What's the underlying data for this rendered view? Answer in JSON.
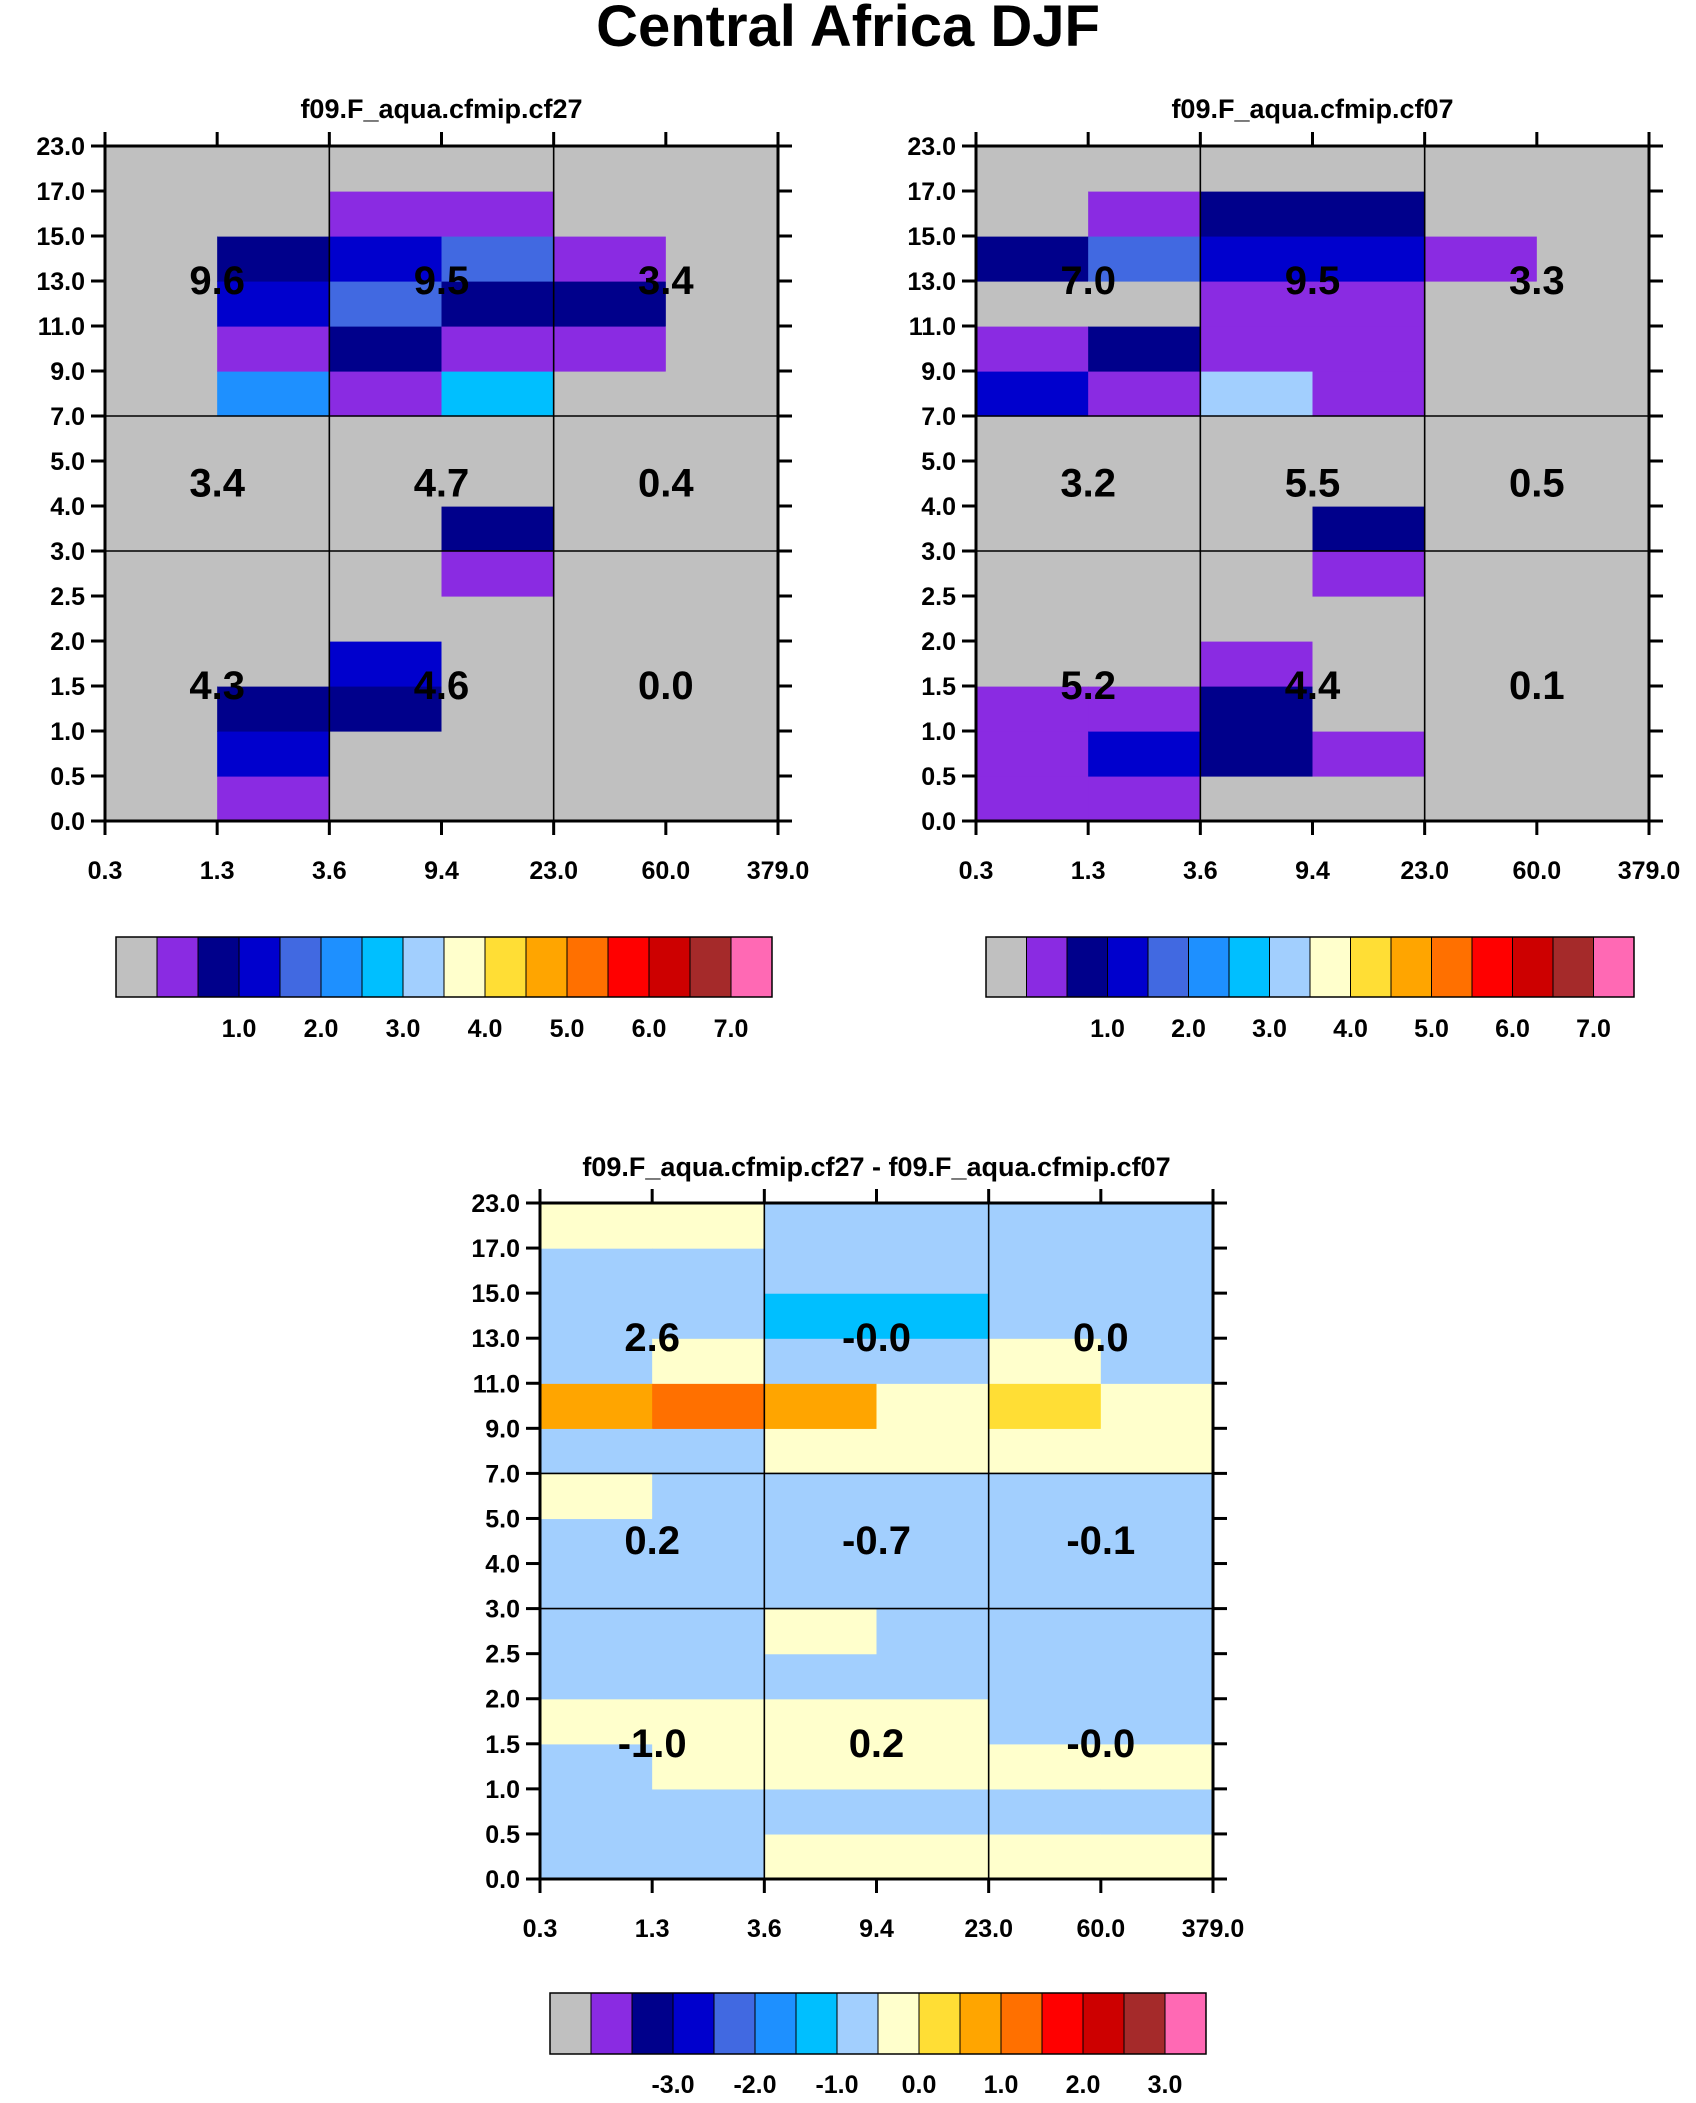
{
  "page_title": "Central Africa DJF",
  "chart_data": [
    {
      "type": "heatmap",
      "title": "f09.F_aqua.cfmip.cf27",
      "x_ticks": [
        "0.3",
        "1.3",
        "3.6",
        "9.4",
        "23.0",
        "60.0",
        "379.0"
      ],
      "y_ticks": [
        "0.0",
        "0.5",
        "1.0",
        "1.5",
        "2.0",
        "2.5",
        "3.0",
        "4.0",
        "5.0",
        "7.0",
        "9.0",
        "11.0",
        "13.0",
        "15.0",
        "17.0",
        "23.0"
      ],
      "cells": [
        [
          0,
          0,
          0,
          0,
          0,
          0,
          0,
          0,
          0,
          0,
          0,
          0,
          0,
          0,
          0
        ],
        [
          1,
          3,
          2,
          0,
          0,
          0,
          0,
          0,
          0,
          5,
          1,
          3,
          2,
          0,
          0
        ],
        [
          0,
          0,
          2,
          3,
          0,
          0,
          0,
          0,
          0,
          1,
          2,
          4,
          3,
          1,
          0
        ],
        [
          0,
          0,
          0,
          0,
          0,
          1,
          2,
          0,
          0,
          6,
          1,
          2,
          4,
          1,
          0
        ],
        [
          0,
          0,
          0,
          0,
          0,
          0,
          0,
          0,
          0,
          0,
          1,
          2,
          1,
          0,
          0
        ],
        [
          0,
          0,
          0,
          0,
          0,
          0,
          0,
          0,
          0,
          0,
          0,
          0,
          0,
          0,
          0
        ]
      ],
      "box_labels": [
        [
          "4.3",
          "4.6",
          "0.0"
        ],
        [
          "3.4",
          "4.7",
          "0.4"
        ],
        [
          "9.6",
          "9.5",
          "3.4"
        ]
      ],
      "colorbar_labels": [
        "1.0",
        "2.0",
        "3.0",
        "4.0",
        "5.0",
        "6.0",
        "7.0"
      ]
    },
    {
      "type": "heatmap",
      "title": "f09.F_aqua.cfmip.cf07",
      "x_ticks": [
        "0.3",
        "1.3",
        "3.6",
        "9.4",
        "23.0",
        "60.0",
        "379.0"
      ],
      "y_ticks": [
        "0.0",
        "0.5",
        "1.0",
        "1.5",
        "2.0",
        "2.5",
        "3.0",
        "4.0",
        "5.0",
        "7.0",
        "9.0",
        "11.0",
        "13.0",
        "15.0",
        "17.0",
        "23.0"
      ],
      "cells": [
        [
          1,
          1,
          1,
          0,
          0,
          0,
          0,
          0,
          0,
          3,
          1,
          0,
          2,
          0,
          0
        ],
        [
          1,
          3,
          1,
          0,
          0,
          0,
          0,
          0,
          0,
          1,
          2,
          0,
          4,
          1,
          0
        ],
        [
          0,
          2,
          2,
          1,
          0,
          0,
          0,
          0,
          0,
          7,
          1,
          1,
          3,
          2,
          0
        ],
        [
          0,
          1,
          0,
          0,
          0,
          1,
          2,
          0,
          0,
          1,
          1,
          1,
          3,
          2,
          0
        ],
        [
          0,
          0,
          0,
          0,
          0,
          0,
          0,
          0,
          0,
          0,
          0,
          0,
          1,
          0,
          0
        ],
        [
          0,
          0,
          0,
          0,
          0,
          0,
          0,
          0,
          0,
          0,
          0,
          0,
          0,
          0,
          0
        ]
      ],
      "box_labels": [
        [
          "5.2",
          "4.4",
          "0.1"
        ],
        [
          "3.2",
          "5.5",
          "0.5"
        ],
        [
          "7.0",
          "9.5",
          "3.3"
        ]
      ],
      "colorbar_labels": [
        "1.0",
        "2.0",
        "3.0",
        "4.0",
        "5.0",
        "6.0",
        "7.0"
      ]
    },
    {
      "type": "heatmap",
      "title": "f09.F_aqua.cfmip.cf27 - f09.F_aqua.cfmip.cf07",
      "x_ticks": [
        "0.3",
        "1.3",
        "3.6",
        "9.4",
        "23.0",
        "60.0",
        "379.0"
      ],
      "y_ticks": [
        "0.0",
        "0.5",
        "1.0",
        "1.5",
        "2.0",
        "2.5",
        "3.0",
        "4.0",
        "5.0",
        "7.0",
        "9.0",
        "11.0",
        "13.0",
        "15.0",
        "17.0",
        "23.0"
      ],
      "cells": [
        [
          7,
          7,
          7,
          8,
          7,
          7,
          7,
          7,
          8,
          7,
          10,
          7,
          7,
          7,
          8
        ],
        [
          7,
          7,
          8,
          8,
          7,
          7,
          7,
          7,
          7,
          7,
          11,
          8,
          7,
          7,
          8
        ],
        [
          8,
          7,
          8,
          8,
          7,
          8,
          7,
          7,
          7,
          8,
          10,
          7,
          6,
          7,
          7
        ],
        [
          8,
          7,
          8,
          8,
          7,
          7,
          7,
          7,
          7,
          8,
          8,
          7,
          6,
          7,
          7
        ],
        [
          8,
          7,
          8,
          7,
          7,
          7,
          7,
          7,
          7,
          8,
          9,
          8,
          7,
          7,
          7
        ],
        [
          8,
          7,
          8,
          7,
          7,
          7,
          7,
          7,
          7,
          8,
          8,
          7,
          7,
          7,
          7
        ]
      ],
      "box_labels": [
        [
          "-1.0",
          "0.2",
          "-0.0"
        ],
        [
          "0.2",
          "-0.7",
          "-0.1"
        ],
        [
          "2.6",
          "-0.0",
          "0.0"
        ]
      ],
      "colorbar_labels": [
        "-3.0",
        "-2.0",
        "-1.0",
        "0.0",
        "1.0",
        "2.0",
        "3.0"
      ]
    }
  ],
  "palette": [
    "#c0c0c0",
    "#8a2be2",
    "#00008b",
    "#0000cd",
    "#4169e1",
    "#1e90ff",
    "#00bfff",
    "#a2cffe",
    "#ffffcc",
    "#ffde35",
    "#ffa500",
    "#ff7000",
    "#ff0000",
    "#cd0000",
    "#a52a2a",
    "#ff69b4"
  ]
}
